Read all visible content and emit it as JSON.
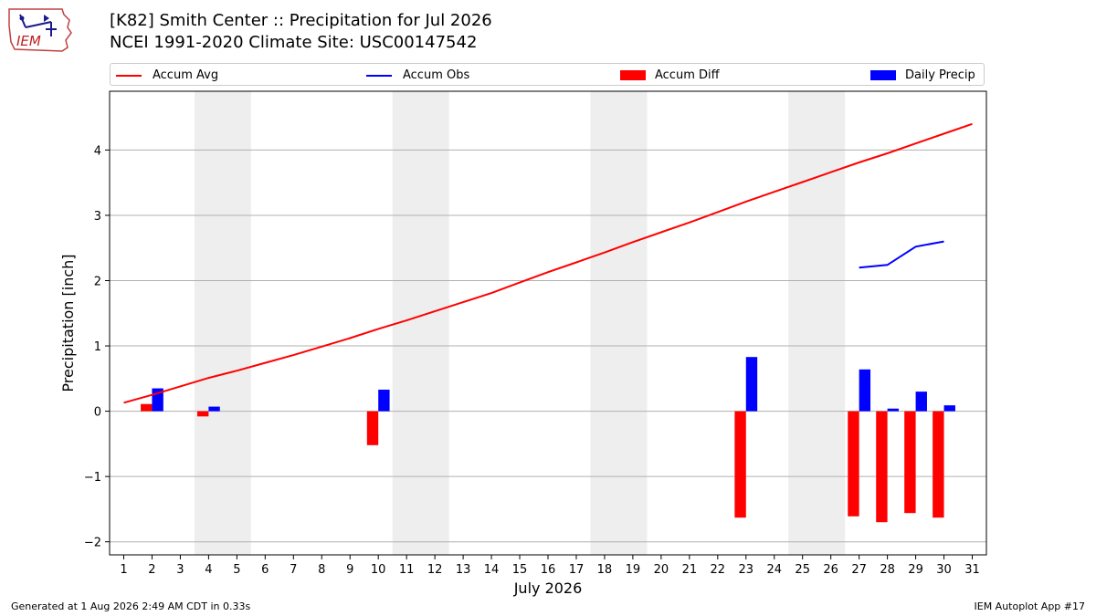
{
  "header": {
    "title": "[K82] Smith Center :: Precipitation for Jul 2026",
    "subtitle": "NCEI 1991-2020 Climate Site: USC00147542",
    "logo_text": "IEM"
  },
  "footer": {
    "generated": "Generated at 1 Aug 2026 2:49 AM CDT in 0.33s",
    "app": "IEM Autoplot App #17"
  },
  "colors": {
    "accum_avg": "#ff0000",
    "accum_obs": "#0000ff",
    "accum_diff": "#ff0000",
    "daily_precip": "#0000ff",
    "weekend_shade": "#eeeeee",
    "grid": "#b0b0b0"
  },
  "chart_data": {
    "type": "bar",
    "title": "[K82] Smith Center :: Precipitation for Jul 2026",
    "subtitle": "NCEI 1991-2020 Climate Site: USC00147542",
    "xlabel": "July 2026",
    "ylabel": "Precipitation [inch]",
    "xlim": [
      0.5,
      31.5
    ],
    "ylim": [
      -2.2,
      4.9
    ],
    "yticks": [
      -2,
      -1,
      0,
      1,
      2,
      3,
      4
    ],
    "ytick_labels": [
      "−2",
      "−1",
      "0",
      "1",
      "2",
      "3",
      "4"
    ],
    "x_ticks": [
      1,
      2,
      3,
      4,
      5,
      6,
      7,
      8,
      9,
      10,
      11,
      12,
      13,
      14,
      15,
      16,
      17,
      18,
      19,
      20,
      21,
      22,
      23,
      24,
      25,
      26,
      27,
      28,
      29,
      30,
      31
    ],
    "x_tick_labels": [
      "1",
      "2",
      "3",
      "4",
      "5",
      "6",
      "7",
      "8",
      "9",
      "10",
      "11",
      "12",
      "13",
      "14",
      "15",
      "16",
      "17",
      "18",
      "19",
      "20",
      "21",
      "22",
      "23",
      "24",
      "25",
      "26",
      "27",
      "28",
      "29",
      "30",
      "31"
    ],
    "weekend_spans": [
      [
        3.5,
        5.5
      ],
      [
        10.5,
        12.5
      ],
      [
        17.5,
        19.5
      ],
      [
        24.5,
        26.5
      ]
    ],
    "grid": "horizontal",
    "legend_position": "top",
    "legend": [
      "Accum Avg",
      "Accum Obs",
      "Accum Diff",
      "Daily Precip"
    ],
    "series": [
      {
        "name": "Accum Avg",
        "type": "line",
        "x": [
          1,
          2,
          3,
          4,
          5,
          6,
          7,
          8,
          9,
          10,
          11,
          12,
          13,
          14,
          15,
          16,
          17,
          18,
          19,
          20,
          21,
          22,
          23,
          24,
          25,
          26,
          27,
          28,
          29,
          30,
          31
        ],
        "y": [
          0.13,
          0.25,
          0.38,
          0.51,
          0.62,
          0.74,
          0.86,
          0.99,
          1.12,
          1.26,
          1.39,
          1.53,
          1.67,
          1.81,
          1.97,
          2.13,
          2.28,
          2.43,
          2.59,
          2.74,
          2.89,
          3.05,
          3.21,
          3.36,
          3.51,
          3.66,
          3.81,
          3.95,
          4.1,
          4.25,
          4.4
        ]
      },
      {
        "name": "Accum Obs",
        "type": "line",
        "x": [
          27,
          28,
          29,
          30
        ],
        "y": [
          2.2,
          2.24,
          2.52,
          2.6
        ]
      },
      {
        "name": "Accum Diff",
        "type": "bar",
        "x": [
          2,
          4,
          10,
          23,
          27,
          28,
          29,
          30
        ],
        "y": [
          0.11,
          -0.08,
          -0.52,
          -1.63,
          -1.61,
          -1.7,
          -1.56,
          -1.63
        ]
      },
      {
        "name": "Daily Precip",
        "type": "bar",
        "x": [
          2,
          4,
          10,
          23,
          27,
          28,
          29,
          30
        ],
        "y": [
          0.35,
          0.07,
          0.33,
          0.83,
          0.64,
          0.04,
          0.3,
          0.09
        ]
      }
    ]
  }
}
